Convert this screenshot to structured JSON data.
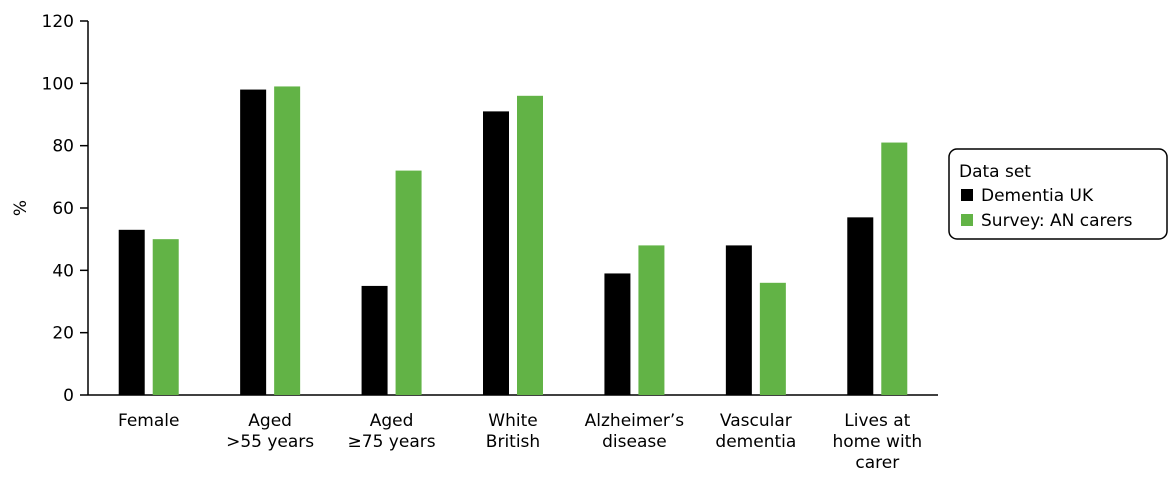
{
  "chart_data": {
    "type": "bar",
    "title": "",
    "xlabel": "",
    "ylabel": "%",
    "ylim": [
      0,
      120
    ],
    "yticks": [
      0,
      20,
      40,
      60,
      80,
      100,
      120
    ],
    "grid": false,
    "legend_position": "right",
    "categories": [
      [
        "Female"
      ],
      [
        "Aged",
        ">55 years"
      ],
      [
        "Aged",
        "≥75 years"
      ],
      [
        "White",
        "British"
      ],
      [
        "Alzheimer’s",
        "disease"
      ],
      [
        "Vascular",
        "dementia"
      ],
      [
        "Lives at",
        "home with",
        "carer"
      ]
    ],
    "legend_title": "Data set",
    "series": [
      {
        "name": "Dementia UK",
        "color": "#000000",
        "values": [
          53,
          98,
          35,
          91,
          39,
          48,
          57
        ]
      },
      {
        "name": "Survey: AN carers",
        "color": "#62b346",
        "values": [
          50,
          99,
          72,
          96,
          48,
          36,
          81
        ]
      }
    ]
  }
}
